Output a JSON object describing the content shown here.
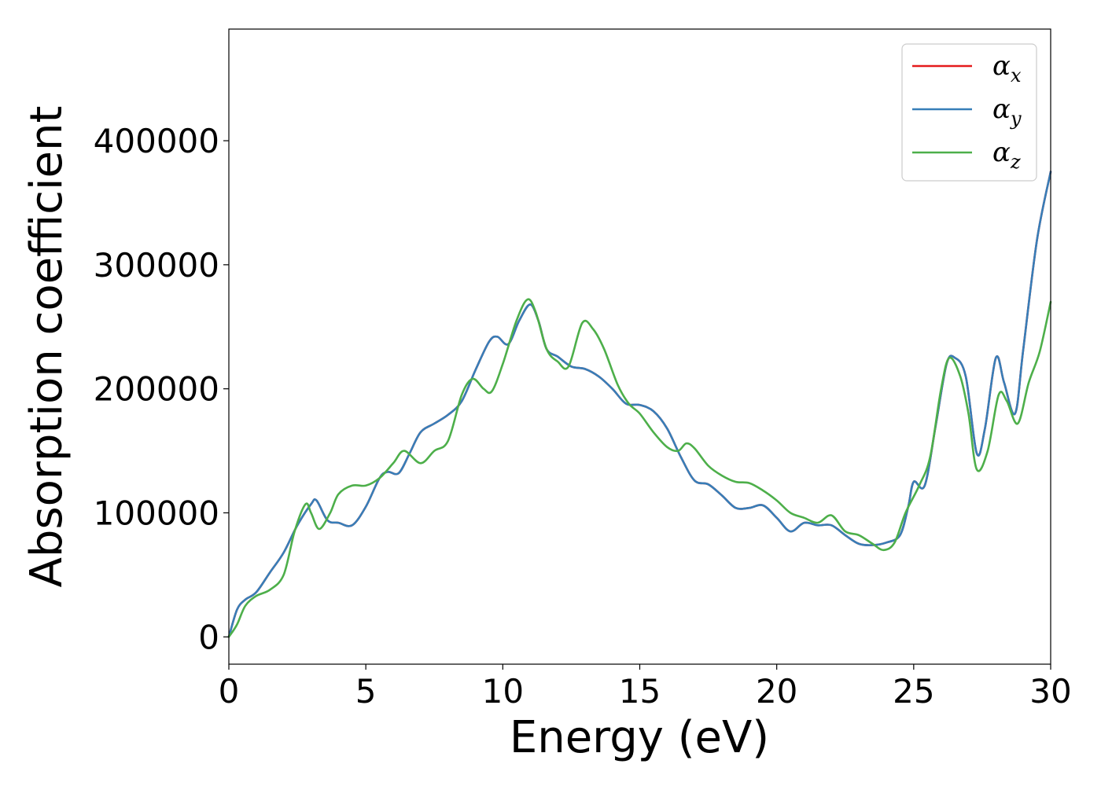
{
  "chart_data": {
    "type": "line",
    "xlabel": "Energy (eV)",
    "ylabel": "Absorption coefficient",
    "xlim": [
      0,
      30
    ],
    "ylim": [
      -22000,
      490000
    ],
    "xticks": [
      0,
      5,
      10,
      15,
      20,
      25,
      30
    ],
    "yticks": [
      0,
      100000,
      200000,
      300000,
      400000
    ],
    "grid": false,
    "legend_position": "top-right",
    "series": [
      {
        "name": "αx",
        "symbol": "α",
        "subscript": "x",
        "color": "#e41a1c",
        "x": [
          0,
          0.3,
          0.6,
          1.0,
          1.5,
          2.0,
          2.5,
          3.0,
          3.2,
          3.6,
          4.0,
          4.5,
          5.0,
          5.5,
          5.8,
          6.2,
          6.6,
          7.0,
          7.5,
          8.0,
          8.5,
          9.0,
          9.5,
          9.8,
          10.2,
          10.6,
          11.0,
          11.3,
          11.6,
          12.0,
          12.5,
          13.0,
          13.5,
          14.0,
          14.5,
          15.0,
          15.5,
          16.0,
          16.5,
          17.0,
          17.5,
          18.0,
          18.5,
          19.0,
          19.5,
          20.0,
          20.5,
          21.0,
          21.5,
          22.0,
          22.5,
          23.0,
          23.5,
          24.0,
          24.5,
          24.8,
          25.0,
          25.4,
          25.8,
          26.2,
          26.5,
          26.9,
          27.3,
          27.6,
          28.0,
          28.3,
          28.7,
          29.0,
          29.5,
          30.0
        ],
        "y": [
          0,
          22000,
          30000,
          36000,
          52000,
          68000,
          90000,
          107000,
          110000,
          94000,
          92000,
          90000,
          105000,
          128000,
          133000,
          132000,
          148000,
          165000,
          172000,
          179000,
          190000,
          215000,
          238000,
          242000,
          236000,
          255000,
          268000,
          255000,
          232000,
          226000,
          218000,
          216000,
          210000,
          200000,
          188000,
          187000,
          182000,
          168000,
          145000,
          126000,
          123000,
          114000,
          104000,
          104000,
          106000,
          96000,
          85000,
          92000,
          90000,
          90000,
          82000,
          75000,
          74000,
          76000,
          82000,
          105000,
          125000,
          122000,
          170000,
          220000,
          225000,
          210000,
          148000,
          168000,
          225000,
          205000,
          180000,
          232000,
          320000,
          375000
        ]
      },
      {
        "name": "αy",
        "symbol": "α",
        "subscript": "y",
        "color": "#377eb8",
        "x": [
          0,
          0.3,
          0.6,
          1.0,
          1.5,
          2.0,
          2.5,
          3.0,
          3.2,
          3.6,
          4.0,
          4.5,
          5.0,
          5.5,
          5.8,
          6.2,
          6.6,
          7.0,
          7.5,
          8.0,
          8.5,
          9.0,
          9.5,
          9.8,
          10.2,
          10.6,
          11.0,
          11.3,
          11.6,
          12.0,
          12.5,
          13.0,
          13.5,
          14.0,
          14.5,
          15.0,
          15.5,
          16.0,
          16.5,
          17.0,
          17.5,
          18.0,
          18.5,
          19.0,
          19.5,
          20.0,
          20.5,
          21.0,
          21.5,
          22.0,
          22.5,
          23.0,
          23.5,
          24.0,
          24.5,
          24.8,
          25.0,
          25.4,
          25.8,
          26.2,
          26.5,
          26.9,
          27.3,
          27.6,
          28.0,
          28.3,
          28.7,
          29.0,
          29.5,
          30.0
        ],
        "y": [
          0,
          22000,
          30000,
          36000,
          52000,
          68000,
          90000,
          107000,
          110000,
          94000,
          92000,
          90000,
          105000,
          128000,
          133000,
          132000,
          148000,
          165000,
          172000,
          179000,
          190000,
          215000,
          238000,
          242000,
          236000,
          255000,
          268000,
          255000,
          232000,
          226000,
          218000,
          216000,
          210000,
          200000,
          188000,
          187000,
          182000,
          168000,
          145000,
          126000,
          123000,
          114000,
          104000,
          104000,
          106000,
          96000,
          85000,
          92000,
          90000,
          90000,
          82000,
          75000,
          74000,
          76000,
          82000,
          105000,
          125000,
          122000,
          170000,
          220000,
          225000,
          210000,
          148000,
          168000,
          225000,
          205000,
          180000,
          232000,
          320000,
          375000
        ]
      },
      {
        "name": "αz",
        "symbol": "α",
        "subscript": "z",
        "color": "#4daf4a",
        "x": [
          0,
          0.3,
          0.6,
          1.0,
          1.5,
          2.0,
          2.4,
          2.8,
          3.0,
          3.3,
          3.7,
          4.0,
          4.5,
          5.0,
          5.5,
          6.0,
          6.4,
          7.0,
          7.5,
          8.0,
          8.5,
          8.9,
          9.3,
          9.6,
          10.0,
          10.5,
          10.9,
          11.2,
          11.6,
          12.0,
          12.4,
          12.9,
          13.3,
          13.7,
          14.2,
          14.6,
          15.0,
          15.5,
          16.0,
          16.4,
          16.7,
          17.0,
          17.5,
          18.0,
          18.5,
          19.0,
          19.5,
          20.0,
          20.5,
          21.0,
          21.5,
          22.0,
          22.5,
          23.0,
          23.5,
          23.9,
          24.3,
          24.7,
          25.2,
          25.6,
          26.0,
          26.3,
          26.7,
          27.0,
          27.3,
          27.7,
          28.1,
          28.4,
          28.8,
          29.2,
          29.6,
          30.0
        ],
        "y": [
          0,
          10000,
          25000,
          33000,
          38000,
          50000,
          85000,
          107000,
          100000,
          87000,
          100000,
          115000,
          122000,
          122000,
          128000,
          140000,
          150000,
          140000,
          150000,
          158000,
          195000,
          208000,
          200000,
          198000,
          220000,
          255000,
          272000,
          262000,
          232000,
          222000,
          218000,
          253000,
          248000,
          232000,
          203000,
          188000,
          180000,
          165000,
          153000,
          150000,
          156000,
          152000,
          138000,
          130000,
          125000,
          124000,
          118000,
          110000,
          100000,
          96000,
          92000,
          98000,
          85000,
          82000,
          75000,
          70000,
          76000,
          100000,
          122000,
          145000,
          200000,
          225000,
          210000,
          180000,
          135000,
          150000,
          195000,
          190000,
          172000,
          205000,
          230000,
          270000
        ]
      }
    ]
  }
}
